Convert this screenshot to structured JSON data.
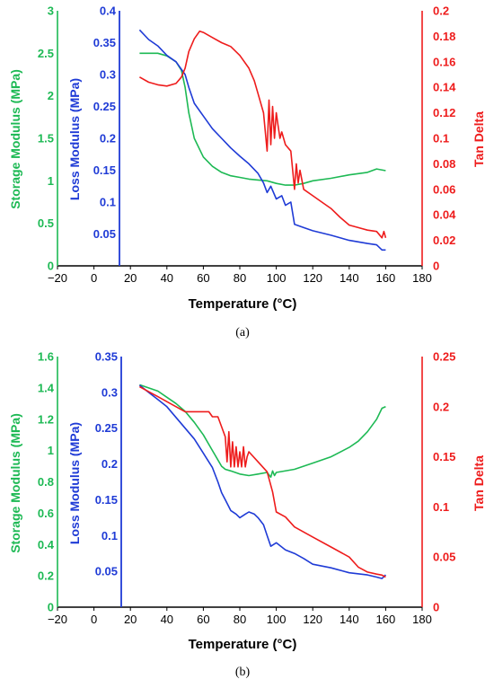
{
  "colors": {
    "storage": "#1db954",
    "loss": "#1f3bd6",
    "tan": "#ee1c1c",
    "axis": "#000000",
    "background": "#ffffff"
  },
  "chart_data": [
    {
      "type": "line",
      "caption": "(a)",
      "xlabel": "Temperature (°C)",
      "xlim": [
        -20,
        180
      ],
      "x_ticks": [
        "−20",
        "0",
        "20",
        "40",
        "60",
        "80",
        "100",
        "120",
        "140",
        "160",
        "180"
      ],
      "grid": false,
      "legend": "none",
      "axes": {
        "storage": {
          "label": "Storage Modulus (MPa)",
          "range": [
            0,
            3
          ],
          "ticks": [
            "0",
            "0.5",
            "1",
            "1.5",
            "2",
            "2.5",
            "3"
          ]
        },
        "loss": {
          "label": "Loss Modulus (MPa)",
          "range": [
            0,
            0.4
          ],
          "ticks": [
            "0.05",
            "0.1",
            "0.15",
            "0.2",
            "0.25",
            "0.3",
            "0.35",
            "0.4"
          ]
        },
        "tan": {
          "label": "Tan Delta",
          "range": [
            0,
            0.2
          ],
          "ticks": [
            "0",
            "0.02",
            "0.04",
            "0.06",
            "0.08",
            "0.1",
            "0.12",
            "0.14",
            "0.16",
            "0.18",
            "0.2"
          ]
        }
      },
      "series": [
        {
          "axis": "storage",
          "x": [
            25,
            35,
            40,
            45,
            48,
            50,
            52,
            55,
            60,
            65,
            70,
            75,
            80,
            85,
            90,
            95,
            100,
            105,
            110,
            115,
            120,
            130,
            140,
            150,
            155,
            160
          ],
          "y": [
            2.5,
            2.5,
            2.47,
            2.4,
            2.3,
            2.1,
            1.8,
            1.5,
            1.28,
            1.17,
            1.1,
            1.06,
            1.04,
            1.02,
            1.01,
            1.0,
            0.97,
            0.95,
            0.95,
            0.97,
            1.0,
            1.03,
            1.07,
            1.1,
            1.14,
            1.12
          ]
        },
        {
          "axis": "loss",
          "x": [
            25,
            30,
            35,
            40,
            45,
            50,
            52,
            55,
            60,
            65,
            70,
            75,
            80,
            85,
            90,
            93,
            95,
            97,
            100,
            103,
            105,
            108,
            110,
            115,
            120,
            130,
            140,
            150,
            155,
            158,
            160
          ],
          "y": [
            0.37,
            0.355,
            0.345,
            0.33,
            0.32,
            0.3,
            0.28,
            0.255,
            0.235,
            0.215,
            0.2,
            0.185,
            0.172,
            0.16,
            0.145,
            0.13,
            0.115,
            0.125,
            0.105,
            0.11,
            0.095,
            0.1,
            0.065,
            0.06,
            0.055,
            0.048,
            0.04,
            0.035,
            0.033,
            0.025,
            0.025
          ]
        },
        {
          "axis": "tan",
          "x": [
            25,
            30,
            35,
            40,
            45,
            48,
            50,
            52,
            55,
            58,
            60,
            65,
            70,
            75,
            80,
            85,
            88,
            90,
            93,
            95,
            96,
            97,
            98,
            99,
            100,
            101,
            102,
            103,
            105,
            108,
            110,
            111,
            112,
            113,
            115,
            120,
            125,
            130,
            135,
            140,
            145,
            150,
            155,
            158,
            159,
            160
          ],
          "y": [
            0.148,
            0.144,
            0.142,
            0.141,
            0.143,
            0.148,
            0.155,
            0.168,
            0.178,
            0.184,
            0.183,
            0.179,
            0.175,
            0.172,
            0.165,
            0.155,
            0.145,
            0.135,
            0.12,
            0.09,
            0.13,
            0.095,
            0.125,
            0.1,
            0.12,
            0.11,
            0.1,
            0.105,
            0.095,
            0.09,
            0.06,
            0.08,
            0.065,
            0.075,
            0.06,
            0.055,
            0.05,
            0.045,
            0.038,
            0.032,
            0.03,
            0.028,
            0.027,
            0.022,
            0.027,
            0.022
          ]
        }
      ]
    },
    {
      "type": "line",
      "caption": "(b)",
      "xlabel": "Temperature (°C)",
      "xlim": [
        -20,
        180
      ],
      "x_ticks": [
        "−20",
        "0",
        "20",
        "40",
        "60",
        "80",
        "100",
        "120",
        "140",
        "160",
        "180"
      ],
      "grid": false,
      "legend": "none",
      "axes": {
        "storage": {
          "label": "Storage Modulus (MPa)",
          "range": [
            0,
            1.6
          ],
          "ticks": [
            "0",
            "0.2",
            "0.4",
            "0.6",
            "0.8",
            "1",
            "1.2",
            "1.4",
            "1.6"
          ]
        },
        "loss": {
          "label": "Loss Modulus (MPa)",
          "range": [
            0,
            0.35
          ],
          "ticks": [
            "0.05",
            "0.1",
            "0.15",
            "0.2",
            "0.25",
            "0.3",
            "0.35"
          ]
        },
        "tan": {
          "label": "Tan Delta",
          "range": [
            0,
            0.25
          ],
          "ticks": [
            "0",
            "0.05",
            "0.1",
            "0.15",
            "0.2",
            "0.25"
          ]
        }
      },
      "series": [
        {
          "axis": "storage",
          "x": [
            25,
            30,
            35,
            40,
            45,
            50,
            55,
            60,
            65,
            70,
            72,
            75,
            80,
            85,
            90,
            95,
            97,
            98,
            99,
            100,
            110,
            120,
            130,
            140,
            145,
            150,
            155,
            158,
            160
          ],
          "y": [
            1.42,
            1.4,
            1.38,
            1.34,
            1.3,
            1.25,
            1.18,
            1.1,
            1.0,
            0.9,
            0.88,
            0.87,
            0.85,
            0.84,
            0.85,
            0.86,
            0.83,
            0.87,
            0.84,
            0.86,
            0.88,
            0.92,
            0.96,
            1.02,
            1.06,
            1.12,
            1.2,
            1.27,
            1.28
          ]
        },
        {
          "axis": "loss",
          "x": [
            25,
            30,
            35,
            40,
            45,
            50,
            55,
            60,
            65,
            68,
            70,
            72,
            75,
            78,
            80,
            83,
            85,
            88,
            90,
            93,
            95,
            97,
            100,
            105,
            110,
            115,
            120,
            130,
            140,
            150,
            155,
            158,
            160
          ],
          "y": [
            0.31,
            0.3,
            0.29,
            0.28,
            0.265,
            0.25,
            0.235,
            0.215,
            0.195,
            0.175,
            0.16,
            0.15,
            0.135,
            0.13,
            0.125,
            0.13,
            0.133,
            0.13,
            0.125,
            0.115,
            0.1,
            0.085,
            0.09,
            0.08,
            0.075,
            0.068,
            0.06,
            0.055,
            0.048,
            0.045,
            0.042,
            0.04,
            0.045
          ]
        },
        {
          "axis": "tan",
          "x": [
            25,
            30,
            35,
            40,
            45,
            50,
            55,
            60,
            63,
            65,
            68,
            70,
            72,
            73,
            74,
            75,
            76,
            77,
            78,
            79,
            80,
            81,
            82,
            83,
            84,
            85,
            90,
            95,
            98,
            100,
            105,
            110,
            120,
            130,
            140,
            145,
            150,
            155,
            158,
            160
          ],
          "y": [
            0.22,
            0.215,
            0.21,
            0.205,
            0.2,
            0.195,
            0.195,
            0.195,
            0.195,
            0.19,
            0.19,
            0.18,
            0.17,
            0.145,
            0.175,
            0.14,
            0.165,
            0.14,
            0.16,
            0.14,
            0.155,
            0.14,
            0.16,
            0.14,
            0.15,
            0.155,
            0.145,
            0.135,
            0.115,
            0.095,
            0.09,
            0.08,
            0.07,
            0.06,
            0.05,
            0.04,
            0.035,
            0.033,
            0.032,
            0.03
          ]
        }
      ]
    }
  ]
}
